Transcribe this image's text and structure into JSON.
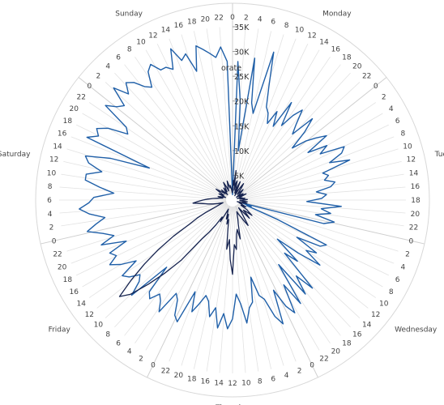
{
  "chart_data": {
    "type": "line",
    "subtype": "radial",
    "days": [
      "Monday",
      "Tuesday",
      "Wednesday",
      "Thursday",
      "Friday",
      "Saturday",
      "Sunday"
    ],
    "hour_ticks": [
      "0",
      "2",
      "4",
      "6",
      "8",
      "10",
      "12",
      "14",
      "16",
      "18",
      "20",
      "22"
    ],
    "radial_axis": {
      "ticks": [
        "5K",
        "10K",
        "15K",
        "20K",
        "25K",
        "30K",
        "35K"
      ],
      "tick_values": [
        5000,
        10000,
        15000,
        20000,
        25000,
        30000,
        35000
      ],
      "max": 35000,
      "label": "orate"
    },
    "series": [
      {
        "color": "#1f5fa8",
        "values": [
          1000,
          28000,
          20000,
          10000,
          29000,
          20000,
          18000,
          31000,
          24000,
          20000,
          19000,
          17000,
          20000,
          17000,
          23000,
          18000,
          21000,
          23000,
          20000,
          18000,
          23000,
          20000,
          16000,
          19000,
          21000,
          23000,
          18000,
          22000,
          20000,
          25000,
          24000,
          21000,
          25000,
          19000,
          20000,
          19000,
          21000,
          20000,
          17000,
          19000,
          18000,
          15000,
          22000,
          18000,
          20000,
          17000,
          21000,
          19000,
          2000,
          4000,
          3000,
          10000,
          21000,
          20000,
          15000,
          20000,
          18000,
          22000,
          17000,
          12000,
          18000,
          15000,
          24000,
          20000,
          24000,
          16000,
          25000,
          20000,
          26000,
          24000,
          20000,
          27000,
          25000,
          21000,
          20000,
          16000,
          21000,
          22000,
          25000,
          21000,
          19000,
          24000,
          26000,
          23000,
          26000,
          22000,
          24000,
          21000,
          20000,
          22000,
          24000,
          20000,
          27000,
          26000,
          23000,
          22000,
          27000,
          25000,
          24000,
          26000,
          25000,
          19000,
          28000,
          25000,
          24000,
          26000,
          27000,
          23000,
          26000,
          28000,
          26000,
          27000,
          23000,
          28000,
          25000,
          27000,
          30000,
          28000,
          26000,
          29000,
          31000,
          29000,
          28000,
          24000,
          27000,
          30000,
          30000,
          27000,
          30000,
          31000,
          26000,
          18000,
          32000,
          30000,
          31000,
          29000,
          25000,
          26000,
          32000,
          30000,
          29000,
          33000,
          30000,
          32000,
          31000,
          29000,
          28000,
          31000,
          32000,
          30000,
          30000,
          29000,
          33000,
          30000,
          31000,
          27000,
          32000,
          31000,
          30000,
          29000,
          31000,
          28000
        ]
      },
      {
        "color": "#16234f",
        "values": [
          2000,
          4000,
          3000,
          6000,
          2000,
          3500,
          4000,
          2500,
          1500,
          3000,
          4000,
          2000,
          1000,
          2000,
          3000,
          4000,
          3000,
          2000,
          1500,
          2000,
          3000,
          2500,
          2000,
          1500,
          1000,
          2000,
          2500,
          1500,
          2000,
          3000,
          2000,
          1500,
          1000,
          1500,
          2000,
          1500,
          2500,
          1500,
          2000,
          3000,
          2500,
          2000,
          1500,
          3000,
          2000,
          2500,
          3000,
          2000,
          1000,
          2000,
          1500,
          2000,
          3000,
          2500,
          2000,
          3500,
          4000,
          5000,
          3500,
          3000,
          4000,
          5000,
          3000,
          2000,
          3000,
          4000,
          6000,
          5000,
          4000,
          3500,
          3000,
          2500,
          3000,
          4000,
          5000,
          8000,
          6000,
          7000,
          10000,
          9000,
          15000,
          12000,
          8000,
          10000,
          6000,
          4000,
          5000,
          3000,
          4000,
          3000,
          2500,
          2000,
          3000,
          5000,
          4000,
          6000,
          8000,
          10000,
          16000,
          20000,
          24000,
          28000,
          30000,
          26000,
          22000,
          18000,
          14000,
          10000,
          8000,
          6000,
          4000,
          3000,
          2500,
          2000,
          3000,
          4000,
          5000,
          6000,
          8000,
          7000,
          6000,
          5000,
          4000,
          3000,
          2500,
          2000,
          3000,
          2500,
          2000,
          1500,
          2000,
          3000,
          2500,
          2000,
          3000,
          4000,
          3000,
          2500,
          2000,
          3000,
          2000,
          1500,
          2000,
          2500,
          3000,
          2000,
          2500,
          3000,
          4000,
          3000,
          2000,
          2500,
          3000,
          4000,
          3000,
          2500,
          3000,
          2500,
          2000,
          1500
        ]
      }
    ]
  }
}
